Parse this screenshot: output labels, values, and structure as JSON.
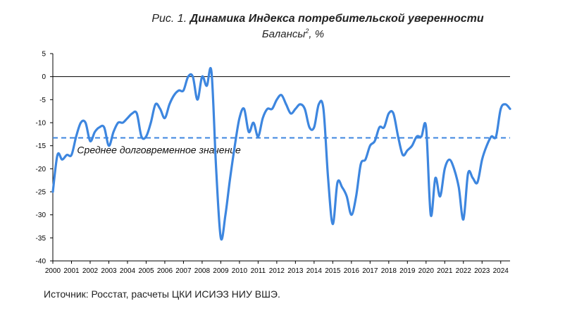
{
  "figure": {
    "title_prefix": "Рис. 1.",
    "title": "Динамика Индекса потребительской уверенности",
    "subtitle_main": "Балансы",
    "subtitle_sup": "2",
    "subtitle_unit": ", %",
    "source": "Источник: Росстат, расчеты ЦКИ ИСИЭЗ НИУ ВШЭ."
  },
  "chart_data": {
    "type": "line",
    "title": "Динамика Индекса потребительской уверенности",
    "ylabel": "Балансы, %",
    "xlabel": "",
    "ylim": [
      -40,
      5
    ],
    "xlim": [
      2000,
      2024.5
    ],
    "yticks": [
      5,
      0,
      -5,
      -10,
      -15,
      -20,
      -25,
      -30,
      -35,
      -40
    ],
    "xticks": [
      "2000",
      "2001",
      "2002",
      "2003",
      "2004",
      "2005",
      "2006",
      "2007",
      "2008",
      "2009",
      "2010",
      "2011",
      "2012",
      "2013",
      "2014",
      "2015",
      "2016",
      "2017",
      "2018",
      "2019",
      "2020",
      "2021",
      "2022",
      "2023",
      "2024"
    ],
    "grid": false,
    "line_color": "#3d86df",
    "average": {
      "label": "Среднее долговременное значение",
      "value": -13.3,
      "color": "#3d86df"
    },
    "series": [
      {
        "points": [
          [
            2000.0,
            -25
          ],
          [
            2000.25,
            -17
          ],
          [
            2000.5,
            -18
          ],
          [
            2000.75,
            -17
          ],
          [
            2001.0,
            -17
          ],
          [
            2001.25,
            -13
          ],
          [
            2001.5,
            -10
          ],
          [
            2001.75,
            -10
          ],
          [
            2002.0,
            -14
          ],
          [
            2002.25,
            -12
          ],
          [
            2002.5,
            -11
          ],
          [
            2002.75,
            -11
          ],
          [
            2003.0,
            -15
          ],
          [
            2003.25,
            -12
          ],
          [
            2003.5,
            -10
          ],
          [
            2003.75,
            -10
          ],
          [
            2004.0,
            -9
          ],
          [
            2004.25,
            -8
          ],
          [
            2004.5,
            -8
          ],
          [
            2004.75,
            -13
          ],
          [
            2005.0,
            -13
          ],
          [
            2005.25,
            -10
          ],
          [
            2005.5,
            -6
          ],
          [
            2005.75,
            -7
          ],
          [
            2006.0,
            -9
          ],
          [
            2006.25,
            -6
          ],
          [
            2006.5,
            -4
          ],
          [
            2006.75,
            -3
          ],
          [
            2007.0,
            -3
          ],
          [
            2007.25,
            0
          ],
          [
            2007.5,
            0
          ],
          [
            2007.75,
            -5
          ],
          [
            2008.0,
            0
          ],
          [
            2008.25,
            -2
          ],
          [
            2008.5,
            1
          ],
          [
            2008.75,
            -20
          ],
          [
            2009.0,
            -35
          ],
          [
            2009.25,
            -30
          ],
          [
            2009.5,
            -22
          ],
          [
            2009.75,
            -15
          ],
          [
            2010.0,
            -9
          ],
          [
            2010.25,
            -7
          ],
          [
            2010.5,
            -12
          ],
          [
            2010.75,
            -10
          ],
          [
            2011.0,
            -13
          ],
          [
            2011.25,
            -9
          ],
          [
            2011.5,
            -7
          ],
          [
            2011.75,
            -7
          ],
          [
            2012.0,
            -5
          ],
          [
            2012.25,
            -4
          ],
          [
            2012.5,
            -6
          ],
          [
            2012.75,
            -8
          ],
          [
            2013.0,
            -7
          ],
          [
            2013.25,
            -6
          ],
          [
            2013.5,
            -7
          ],
          [
            2013.75,
            -11
          ],
          [
            2014.0,
            -11
          ],
          [
            2014.25,
            -6
          ],
          [
            2014.5,
            -7
          ],
          [
            2014.75,
            -22
          ],
          [
            2015.0,
            -32
          ],
          [
            2015.25,
            -23
          ],
          [
            2015.5,
            -24
          ],
          [
            2015.75,
            -26
          ],
          [
            2016.0,
            -30
          ],
          [
            2016.25,
            -26
          ],
          [
            2016.5,
            -19
          ],
          [
            2016.75,
            -18
          ],
          [
            2017.0,
            -15
          ],
          [
            2017.25,
            -14
          ],
          [
            2017.5,
            -11
          ],
          [
            2017.75,
            -11
          ],
          [
            2018.0,
            -8
          ],
          [
            2018.25,
            -8
          ],
          [
            2018.5,
            -13
          ],
          [
            2018.75,
            -17
          ],
          [
            2019.0,
            -16
          ],
          [
            2019.25,
            -15
          ],
          [
            2019.5,
            -13
          ],
          [
            2019.75,
            -13
          ],
          [
            2020.0,
            -11
          ],
          [
            2020.25,
            -30
          ],
          [
            2020.5,
            -22
          ],
          [
            2020.75,
            -26
          ],
          [
            2021.0,
            -20
          ],
          [
            2021.25,
            -18
          ],
          [
            2021.5,
            -20
          ],
          [
            2021.75,
            -24
          ],
          [
            2022.0,
            -31
          ],
          [
            2022.25,
            -21
          ],
          [
            2022.5,
            -22
          ],
          [
            2022.75,
            -23
          ],
          [
            2023.0,
            -18
          ],
          [
            2023.25,
            -15
          ],
          [
            2023.5,
            -13
          ],
          [
            2023.75,
            -13
          ],
          [
            2024.0,
            -7
          ],
          [
            2024.25,
            -6
          ],
          [
            2024.5,
            -7
          ]
        ]
      }
    ]
  }
}
